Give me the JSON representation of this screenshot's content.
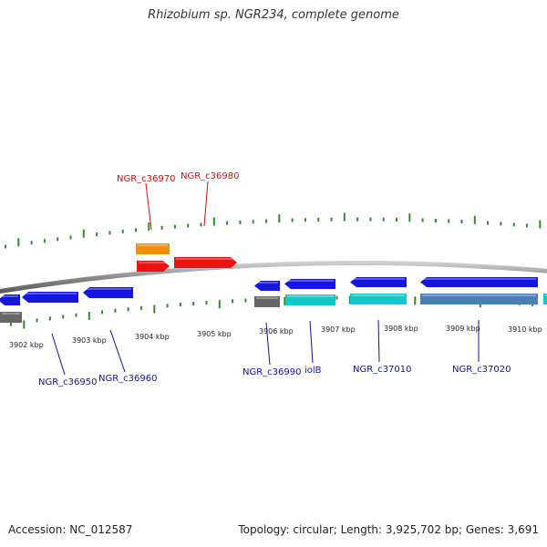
{
  "title": "Rhizobium sp. NGR234, complete genome",
  "footer": {
    "accession": "Accession: NC_012587",
    "summary": "Topology: circular; Length: 3,925,702 bp; Genes: 3,691"
  },
  "colors": {
    "backbone": "#888888",
    "tick": "#2e8b2e",
    "label_blue": "#1010a0",
    "label_red": "#cc1010"
  },
  "kbp_labels": [
    "3902 kbp",
    "3903 kbp",
    "3904 kbp",
    "3905 kbp",
    "3906 kbp",
    "3907 kbp",
    "3908 kbp",
    "3909 kbp",
    "3910 kbp"
  ],
  "gene_labels": [
    {
      "text": "NGR_c36970",
      "color": "#cc1010"
    },
    {
      "text": "NGR_c36980",
      "color": "#cc1010"
    },
    {
      "text": "NGR_c36950",
      "color": "#1010a0"
    },
    {
      "text": "NGR_c36960",
      "color": "#1010a0"
    },
    {
      "text": "NGR_c36990",
      "color": "#1010a0"
    },
    {
      "text": "iolB",
      "color": "#1010a0"
    },
    {
      "text": "NGR_c37010",
      "color": "#1010a0"
    },
    {
      "text": "NGR_c37020",
      "color": "#1010a0"
    }
  ],
  "features": [
    {
      "strand": "-",
      "color": "#1515e0",
      "arrow": "left"
    },
    {
      "strand": "-",
      "color": "#1515e0",
      "arrow": "left"
    },
    {
      "strand": "-",
      "color": "#1515e0",
      "arrow": "left"
    },
    {
      "strand": "+",
      "color": "#ee1111",
      "arrow": "right"
    },
    {
      "strand": "+",
      "color": "#ee1111",
      "arrow": "right"
    },
    {
      "strand": "+",
      "color": "#f0900a",
      "arrow": "none"
    },
    {
      "strand": "-",
      "color": "#1515e0",
      "arrow": "left"
    },
    {
      "strand": "-",
      "color": "#1515e0",
      "arrow": "left"
    },
    {
      "strand": "-",
      "color": "#1515e0",
      "arrow": "left"
    },
    {
      "strand": "-",
      "color": "#1515e0",
      "arrow": "left"
    },
    {
      "strand": "-",
      "color": "#666666",
      "arrow": "none"
    },
    {
      "strand": "-",
      "color": "#666666",
      "arrow": "none"
    },
    {
      "strand": "-",
      "color": "#15c8c8",
      "arrow": "none"
    },
    {
      "strand": "-",
      "color": "#15c8c8",
      "arrow": "none"
    },
    {
      "strand": "-",
      "color": "#4a7fb5",
      "arrow": "none"
    },
    {
      "strand": "-",
      "color": "#15c8c8",
      "arrow": "none"
    }
  ]
}
